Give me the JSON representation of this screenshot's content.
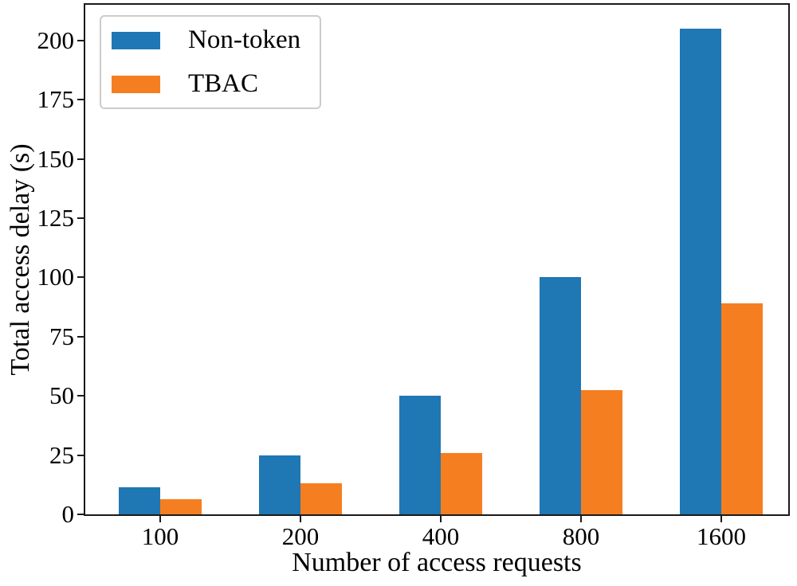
{
  "chart_data": {
    "type": "bar",
    "title": "",
    "xlabel": "Number of access requests",
    "ylabel": "Total access delay (s)",
    "categories": [
      "100",
      "200",
      "400",
      "800",
      "1600"
    ],
    "series": [
      {
        "name": "Non-token",
        "color": "#1f77b4",
        "values": [
          11.5,
          25,
          50,
          100,
          205
        ]
      },
      {
        "name": "TBAC",
        "color": "#f57e20",
        "values": [
          6.5,
          13,
          26,
          52.5,
          89
        ]
      }
    ],
    "ylim": [
      0,
      215
    ],
    "yticks": [
      0,
      25,
      50,
      75,
      100,
      125,
      150,
      175,
      200
    ],
    "grid": false,
    "legend_position": "upper-left",
    "axis_color": "#1a1a1a",
    "background_color": "#ffffff"
  }
}
